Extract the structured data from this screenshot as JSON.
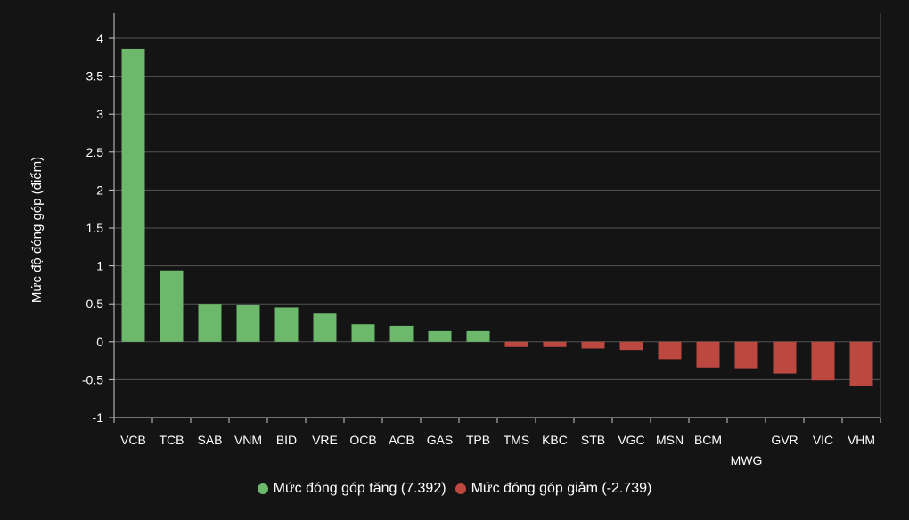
{
  "chart_data": {
    "type": "bar",
    "ylabel": "Mức độ đóng góp (điểm)",
    "xlabel": "",
    "ylim": [
      -1,
      4
    ],
    "yticks": [
      4,
      3.5,
      3,
      2.5,
      2,
      1.5,
      1,
      0.5,
      0,
      -0.5,
      -1
    ],
    "yticks_labels": [
      "4",
      "3.5",
      "3",
      "2.5",
      "2",
      "1.5",
      "1",
      "0.5",
      "0",
      "-0.5",
      "-1"
    ],
    "grid": true,
    "legend_position": "bottom",
    "categories": [
      "VCB",
      "TCB",
      "SAB",
      "VNM",
      "BID",
      "VRE",
      "OCB",
      "ACB",
      "GAS",
      "TPB",
      "TMS",
      "KBC",
      "STB",
      "VGC",
      "MSN",
      "BCM",
      "MWG",
      "GVR",
      "VIC",
      "VHM"
    ],
    "values": [
      3.86,
      0.94,
      0.5,
      0.49,
      0.45,
      0.37,
      0.23,
      0.21,
      0.14,
      0.14,
      -0.07,
      -0.07,
      -0.09,
      -0.11,
      -0.23,
      -0.34,
      -0.35,
      -0.42,
      -0.51,
      -0.58
    ],
    "series": [
      {
        "name": "Mức đóng góp tăng (7.392)",
        "color": "#6cb96c"
      },
      {
        "name": "Mức đóng góp giảm (-2.739)",
        "color": "#bd4840"
      }
    ],
    "colors": {
      "positive": "#6cb96c",
      "negative": "#bd4840",
      "grid": "#555555",
      "axis": "#cccccc",
      "background": "#141414"
    }
  }
}
